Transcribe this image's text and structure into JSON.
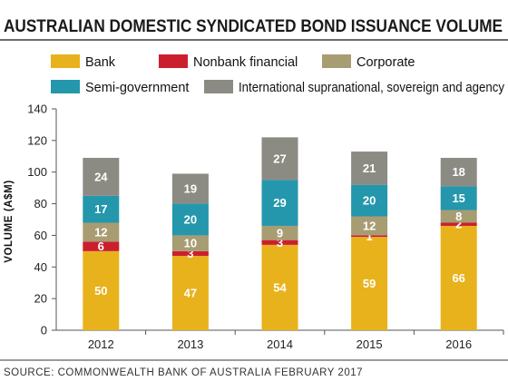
{
  "chart_data": {
    "type": "bar",
    "stacked": true,
    "title": "AUSTRALIAN DOMESTIC SYNDICATED BOND ISSUANCE VOLUME",
    "ylabel": "VOLUME (A$M)",
    "xlabel": "",
    "ylim": [
      0,
      140
    ],
    "yticks": [
      0,
      20,
      40,
      60,
      80,
      100,
      120,
      140
    ],
    "categories": [
      "2012",
      "2013",
      "2014",
      "2015",
      "2016"
    ],
    "series": [
      {
        "name": "Bank",
        "color": "#e8b21c",
        "values": [
          50,
          47,
          54,
          59,
          66
        ]
      },
      {
        "name": "Nonbank financial",
        "color": "#cc1f2e",
        "values": [
          6,
          3,
          3,
          1,
          2
        ]
      },
      {
        "name": "Corporate",
        "color": "#a89c73",
        "values": [
          12,
          10,
          9,
          12,
          8
        ]
      },
      {
        "name": "Semi-government",
        "color": "#2497ad",
        "values": [
          17,
          20,
          29,
          20,
          15
        ]
      },
      {
        "name": "International supranational, sovereign and agency",
        "color": "#8b8b83",
        "values": [
          24,
          19,
          27,
          21,
          18
        ]
      }
    ],
    "legend_position": "top",
    "grid": false,
    "source": "SOURCE: COMMONWEALTH BANK OF AUSTRALIA FEBRUARY 2017"
  }
}
